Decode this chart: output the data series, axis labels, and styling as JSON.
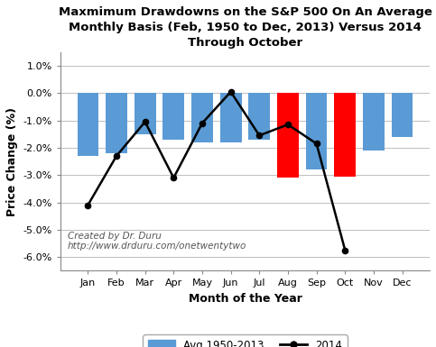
{
  "months": [
    "Jan",
    "Feb",
    "Mar",
    "Apr",
    "May",
    "Jun",
    "Jul",
    "Aug",
    "Sep",
    "Oct",
    "Nov",
    "Dec"
  ],
  "avg_bars": [
    -2.3,
    -2.2,
    -1.5,
    -1.7,
    -1.8,
    -1.8,
    -1.7,
    -3.1,
    -2.8,
    -3.05,
    -2.1,
    -1.6
  ],
  "bar_colors": [
    "#5b9bd5",
    "#5b9bd5",
    "#5b9bd5",
    "#5b9bd5",
    "#5b9bd5",
    "#5b9bd5",
    "#5b9bd5",
    "#ff0000",
    "#5b9bd5",
    "#ff0000",
    "#5b9bd5",
    "#5b9bd5"
  ],
  "line_2014": [
    -4.1,
    -2.3,
    -1.05,
    -3.1,
    -1.1,
    0.05,
    -1.55,
    -1.15,
    -1.85,
    -5.75,
    null,
    null
  ],
  "title": "Maxmimum Drawdowns on the S&P 500 On An Average\nMonthly Basis (Feb, 1950 to Dec, 2013) Versus 2014\nThrough October",
  "xlabel": "Month of the Year",
  "ylabel": "Price Change (%)",
  "ylim_min": -6.5,
  "ylim_max": 1.5,
  "yticks": [
    1.0,
    0.0,
    -1.0,
    -2.0,
    -3.0,
    -4.0,
    -5.0,
    -6.0
  ],
  "annotation_text": "Created by Dr. Duru\nhttp://www.drduru.com/onetwentytwo",
  "bar_color_blue": "#5b9bd5",
  "bar_color_red": "#ff0000",
  "line_color": "#000000",
  "legend_bar_label": "Avg 1950-2013",
  "legend_line_label": "2014",
  "background_color": "#ffffff",
  "grid_color": "#bfbfbf",
  "bar_width": 0.75,
  "title_fontsize": 9.5,
  "axis_label_fontsize": 9,
  "tick_fontsize": 8,
  "annotation_fontsize": 7.5,
  "legend_fontsize": 8.5
}
